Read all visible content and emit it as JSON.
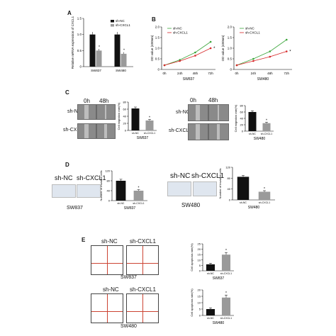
{
  "panels": {
    "A": {
      "label": "A"
    },
    "B": {
      "label": "B"
    },
    "C": {
      "label": "C",
      "time_0": "0h",
      "time_48": "48h",
      "row1": "sh-NC",
      "row2": "sh-CXCL1",
      "cap_left": "SW837",
      "cap_right": "SW480"
    },
    "D": {
      "label": "D",
      "col1": "sh-NC",
      "col2": "sh-CXCL1",
      "cap_left": "SW837",
      "cap_right": "SW480"
    },
    "E": {
      "label": "E",
      "col1": "sh-NC",
      "col2": "sh-CXCL1",
      "cap_top": "SW837",
      "cap_bottom": "SW480"
    }
  },
  "colors": {
    "black_bar": "#111111",
    "grey_bar": "#9a9a9a",
    "sh_nc_line": "#3aa53a",
    "sh_cxcl1_line": "#d62728"
  },
  "chart_data": [
    {
      "id": "A",
      "type": "bar",
      "categories": [
        "SW837",
        "SW480"
      ],
      "series": [
        {
          "name": "sh-NC",
          "values": [
            1.0,
            1.0
          ],
          "errors": [
            0.08,
            0.08
          ]
        },
        {
          "name": "sh-CXCL1",
          "values": [
            0.5,
            0.4
          ],
          "errors": [
            0.05,
            0.05
          ]
        }
      ],
      "ylabel": "Relative mRNA expression of CXCL1",
      "ylim": [
        0,
        1.5
      ],
      "yticks": [
        "0",
        "0.5",
        "1.0",
        "1.5"
      ],
      "annotations": [
        "*",
        "*"
      ],
      "legend": "top-right"
    },
    {
      "id": "B1",
      "type": "line",
      "x": [
        "0h",
        "24h",
        "48h",
        "72h"
      ],
      "series": [
        {
          "name": "sh-NC",
          "values": [
            0.2,
            0.45,
            0.8,
            1.3
          ]
        },
        {
          "name": "sh-CXCL1",
          "values": [
            0.2,
            0.4,
            0.65,
            1.0
          ]
        }
      ],
      "ylabel": "OD value (450nm)",
      "xlabel": "SW837",
      "ylim": [
        0,
        2.0
      ],
      "yticks": [
        "0",
        "0.5",
        "1.0",
        "1.5",
        "2.0"
      ],
      "annotations": [
        "*"
      ],
      "legend": "top-left"
    },
    {
      "id": "B2",
      "type": "line",
      "x": [
        "0h",
        "24h",
        "48h",
        "72h"
      ],
      "series": [
        {
          "name": "sh-NC",
          "values": [
            0.2,
            0.5,
            0.85,
            1.4
          ]
        },
        {
          "name": "sh-CXCL1",
          "values": [
            0.2,
            0.4,
            0.6,
            0.85
          ]
        }
      ],
      "ylabel": "OD value (450nm)",
      "xlabel": "SW480",
      "ylim": [
        0,
        2.0
      ],
      "yticks": [
        "0",
        "0.5",
        "1.0",
        "1.5",
        "2.0"
      ],
      "annotations": [
        "*"
      ],
      "legend": "top-left"
    },
    {
      "id": "C1",
      "type": "bar",
      "categories": [
        "sh-NC",
        "sh-CXCL1"
      ],
      "values": [
        62,
        28
      ],
      "errors": [
        4,
        3
      ],
      "ylabel": "Cell migration rate(%)",
      "xlabel": "SW837",
      "ylim": [
        0,
        80
      ],
      "yticks": [
        "0",
        "20",
        "40",
        "60",
        "80"
      ],
      "annotations": [
        "*"
      ]
    },
    {
      "id": "C2",
      "type": "bar",
      "categories": [
        "sh-NC",
        "sh-CXCL1"
      ],
      "values": [
        60,
        25
      ],
      "errors": [
        4,
        3
      ],
      "ylabel": "Cell migration rate(%)",
      "xlabel": "SW480",
      "ylim": [
        0,
        80
      ],
      "yticks": [
        "0",
        "20",
        "40",
        "60",
        "80"
      ],
      "annotations": [
        "*"
      ]
    },
    {
      "id": "D1",
      "type": "bar",
      "categories": [
        "sh-NC",
        "sh-CXCL1"
      ],
      "values": [
        80,
        40
      ],
      "errors": [
        6,
        4
      ],
      "ylabel": "Number of invaded cells",
      "xlabel": "SW837",
      "ylim": [
        0,
        120
      ],
      "yticks": [
        "0",
        "40",
        "80",
        "120"
      ],
      "annotations": [
        "*"
      ]
    },
    {
      "id": "D2",
      "type": "bar",
      "categories": [
        "sh-NC",
        "sh-CXCL1"
      ],
      "values": [
        85,
        30
      ],
      "errors": [
        5,
        4
      ],
      "ylabel": "Number of invaded cells",
      "xlabel": "SW480",
      "ylim": [
        0,
        120
      ],
      "yticks": [
        "0",
        "40",
        "80",
        "120"
      ],
      "annotations": [
        "*"
      ]
    },
    {
      "id": "E1",
      "type": "bar",
      "categories": [
        "sh-NC",
        "sh-CXCL1"
      ],
      "values": [
        6,
        15
      ],
      "errors": [
        1,
        2
      ],
      "ylabel": "Cell apoptosis rate(%)",
      "xlabel": "SW837",
      "ylim": [
        0,
        25
      ],
      "yticks": [
        "0",
        "5",
        "10",
        "15",
        "20",
        "25"
      ],
      "annotations": [
        "*"
      ]
    },
    {
      "id": "E2",
      "type": "bar",
      "categories": [
        "sh-NC",
        "sh-CXCL1"
      ],
      "values": [
        5,
        14
      ],
      "errors": [
        1,
        2
      ],
      "ylabel": "Cell apoptosis rate(%)",
      "xlabel": "SW480",
      "ylim": [
        0,
        20
      ],
      "yticks": [
        "0",
        "5",
        "10",
        "15",
        "20"
      ],
      "annotations": [
        "*"
      ]
    }
  ]
}
